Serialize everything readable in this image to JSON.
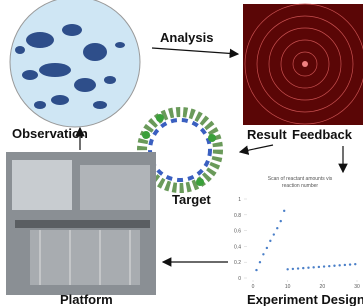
{
  "labels": {
    "analysis": "Analysis",
    "observation": "Observation",
    "result": "Result",
    "feedback": "Feedback",
    "target": "Target",
    "platform": "Platform",
    "design": "Experiment Design"
  },
  "plot": {
    "title_lines": [
      "Scan of reactant amounts vis",
      "reaction number"
    ],
    "xlim": [
      0,
      30
    ],
    "ylim": [
      0,
      1
    ],
    "xticks": [
      0,
      10,
      20,
      30
    ],
    "yticks": [
      0,
      0.2,
      0.4,
      0.6,
      0.8,
      1
    ],
    "series": [
      {
        "color": "#4a7fc8",
        "x": [
          1,
          2,
          3,
          4,
          5,
          6,
          7,
          8,
          9
        ],
        "y": [
          0.1,
          0.2,
          0.3,
          0.38,
          0.47,
          0.55,
          0.63,
          0.72,
          0.85
        ]
      },
      {
        "color": "#4a7fc8",
        "x": [
          10,
          11.5,
          13,
          14.5,
          16,
          17.5,
          19,
          20.5,
          22,
          23.5,
          25,
          26.5,
          28,
          29.5
        ],
        "y": [
          0.11,
          0.115,
          0.12,
          0.125,
          0.13,
          0.135,
          0.14,
          0.145,
          0.15,
          0.155,
          0.16,
          0.165,
          0.17,
          0.175
        ]
      }
    ]
  }
}
